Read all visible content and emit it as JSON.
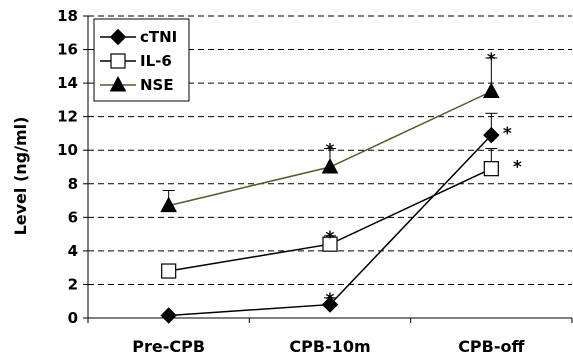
{
  "chart_data": {
    "type": "line",
    "ylabel": "Level (ng/ml)",
    "ylim": [
      0,
      18
    ],
    "yticks": [
      0,
      2,
      4,
      6,
      8,
      10,
      12,
      14,
      16,
      18
    ],
    "categories": [
      "Pre-CPB",
      "CPB-10m",
      "CPB-off"
    ],
    "grid": "horizontal dashed",
    "legend_position": "top-left",
    "series": [
      {
        "name": "cTNI",
        "marker": "diamond",
        "color": "#000000",
        "line_color": "#000000",
        "values": [
          0.15,
          0.8,
          10.9
        ],
        "error": [
          0,
          0.4,
          1.3
        ],
        "significant": [
          false,
          true,
          true
        ]
      },
      {
        "name": "IL-6",
        "marker": "square-open",
        "color": "#000000",
        "line_color": "#000000",
        "values": [
          2.8,
          4.4,
          8.9
        ],
        "error": [
          0,
          0.5,
          1.2
        ],
        "significant": [
          false,
          true,
          true
        ]
      },
      {
        "name": "NSE",
        "marker": "triangle",
        "color": "#000000",
        "line_color": "#5a5a2a",
        "values": [
          6.7,
          9.0,
          13.5
        ],
        "error": [
          0.9,
          1.1,
          2.0
        ],
        "significant": [
          false,
          true,
          true
        ]
      }
    ],
    "significance_symbol": "*"
  }
}
